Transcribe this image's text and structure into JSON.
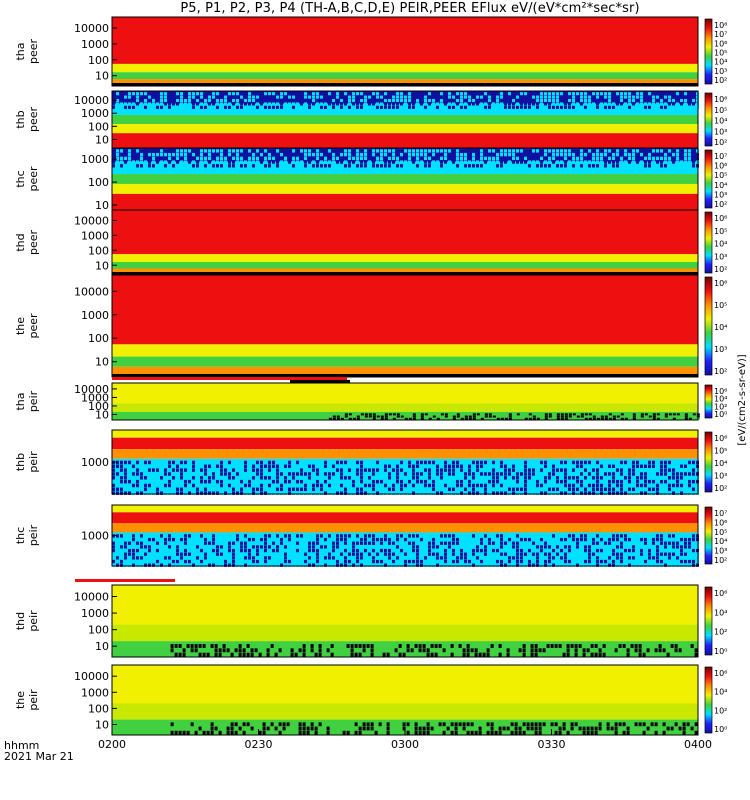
{
  "title": "P5, P1, P2, P3, P4 (TH-A,B,C,D,E) PEIR,PEER EFlux eV/(eV*cm²*sec*sr)",
  "x_axis": {
    "ticks": [
      "0200",
      "0230",
      "0300",
      "0330",
      "0400"
    ],
    "time_label": "hhmm",
    "date_label": "2021 Mar 21"
  },
  "colorbar_label": "[eV/(cm2-s-sr-eV)]",
  "colors": {
    "low": "#1010a0",
    "mid": "#00e0ff",
    "green": "#40d040",
    "yellow": "#f0f000",
    "orange": "#ff9000",
    "red": "#ee1010",
    "fill": "#000000"
  },
  "chart_data": {
    "type": "heatmap",
    "x": [
      "0200",
      "0230",
      "0300",
      "0330",
      "0400"
    ],
    "panels": [
      {
        "name": "tha peer",
        "ylabel": [
          "tha",
          "peer"
        ],
        "yticks": [
          "10000",
          "1000",
          "100",
          "10"
        ],
        "cbar_ticks": [
          "10⁸",
          "10⁷",
          "10⁶",
          "10⁵",
          "10⁴",
          "10³",
          "10²"
        ]
      },
      {
        "name": "thb peer",
        "ylabel": [
          "thb",
          "peer"
        ],
        "yticks": [
          "10000",
          "1000",
          "100",
          "10"
        ],
        "cbar_ticks": [
          "10⁶",
          "10⁵",
          "10⁴",
          "10³",
          "10²"
        ]
      },
      {
        "name": "thc peer",
        "ylabel": [
          "thc",
          "peer"
        ],
        "yticks": [
          "1000",
          "100",
          "10"
        ],
        "cbar_ticks": [
          "10⁷",
          "10⁶",
          "10⁵",
          "10⁴",
          "10³",
          "10²"
        ]
      },
      {
        "name": "thd peer",
        "ylabel": [
          "thd",
          "peer"
        ],
        "yticks": [
          "10000",
          "1000",
          "100",
          "10"
        ],
        "cbar_ticks": [
          "10⁶",
          "10⁵",
          "10⁴",
          "10³",
          "10²"
        ]
      },
      {
        "name": "the peer",
        "ylabel": [
          "the",
          "peer"
        ],
        "yticks": [
          "10000",
          "1000",
          "100",
          "10"
        ],
        "cbar_ticks": [
          "10⁶",
          "10⁵",
          "10⁴",
          "10³",
          "10²"
        ]
      },
      {
        "name": "tha peir",
        "ylabel": [
          "tha",
          "peir"
        ],
        "yticks": [
          "10000",
          "1000",
          "100",
          "10"
        ],
        "cbar_ticks": [
          "10⁶",
          "10⁴",
          "10²",
          "10⁰"
        ]
      },
      {
        "name": "thb peir",
        "ylabel": [
          "thb",
          "peir"
        ],
        "yticks": [
          "1000"
        ],
        "cbar_ticks": [
          "10⁶",
          "10⁵",
          "10⁴",
          "10³",
          "10²"
        ]
      },
      {
        "name": "thc peir",
        "ylabel": [
          "thc",
          "peir"
        ],
        "yticks": [
          "1000"
        ],
        "cbar_ticks": [
          "10⁷",
          "10⁶",
          "10⁵",
          "10⁴",
          "10³",
          "10²"
        ]
      },
      {
        "name": "thd peir",
        "ylabel": [
          "thd",
          "peir"
        ],
        "yticks": [
          "10000",
          "1000",
          "100",
          "10"
        ],
        "cbar_ticks": [
          "10⁶",
          "10⁴",
          "10²",
          "10⁰"
        ]
      },
      {
        "name": "the peir",
        "ylabel": [
          "the",
          "peir"
        ],
        "yticks": [
          "10000",
          "1000",
          "100",
          "10"
        ],
        "cbar_ticks": [
          "10⁶",
          "10⁴",
          "10²",
          "10⁰"
        ]
      }
    ]
  }
}
